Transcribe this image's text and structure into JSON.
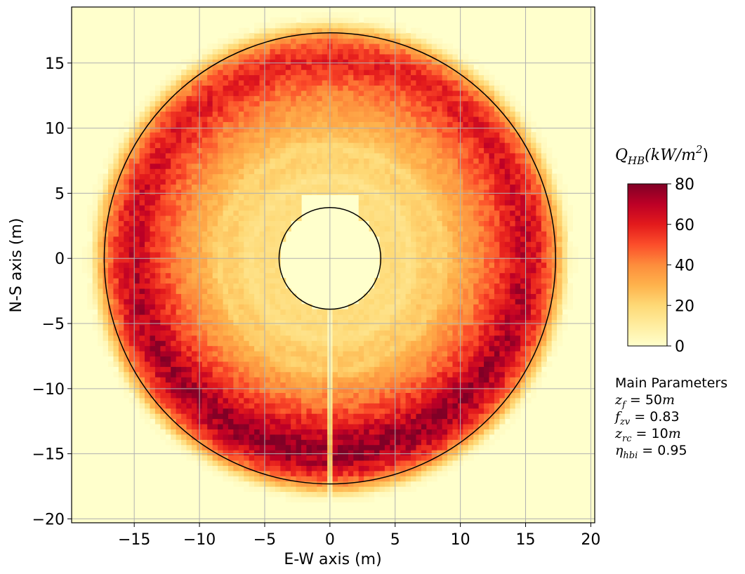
{
  "chart_data": {
    "type": "heatmap",
    "title": "",
    "xlabel": "E-W axis (m)",
    "ylabel": "N-S axis (m)",
    "xlim": [
      -19.8,
      20.3
    ],
    "ylim": [
      -20.3,
      19.3
    ],
    "xticks": [
      -15,
      -10,
      -5,
      0,
      5,
      10,
      15,
      20
    ],
    "yticks": [
      -20,
      -15,
      -10,
      -5,
      0,
      5,
      10,
      15
    ],
    "xtick_labels": [
      "−15",
      "−10",
      "−5",
      "0",
      "5",
      "10",
      "15",
      "20"
    ],
    "ytick_labels": [
      "−20",
      "−15",
      "−10",
      "−5",
      "0",
      "5",
      "10",
      "15"
    ],
    "grid": true,
    "colormap": "YlOrRd",
    "colormap_stops": [
      "#ffffcc",
      "#ffeda0",
      "#fed976",
      "#feb24c",
      "#fd8d3c",
      "#fc4e2a",
      "#e31a1c",
      "#bd0026",
      "#800026"
    ],
    "colorbar": {
      "title_main": "Q",
      "title_sub": "HB",
      "title_rest": "(kW/m",
      "title_sup": "2",
      "title_close": ")",
      "range": [
        0,
        80
      ],
      "ticks": [
        0,
        20,
        40,
        60,
        80
      ],
      "tick_labels": [
        "0",
        "20",
        "40",
        "60",
        "80"
      ]
    },
    "outer_circle_radius": 17.3,
    "inner_circle_radius": 3.9,
    "field_description": {
      "receiver_cutout_radius": 3.9,
      "peak_flux_radius": 15,
      "peak_value_south": 78,
      "peak_value_north": 58,
      "inner_ring_value": 18,
      "outer_falloff_radius": 18.5,
      "south_gap_halfwidth": 0.35
    },
    "parameters": {
      "heading": "Main Parameters",
      "lines": [
        {
          "sym": "z",
          "sub": "f",
          "value": " = 50",
          "unit": "m"
        },
        {
          "sym": "f",
          "sub": "zv",
          "value": " = 0.83",
          "unit": ""
        },
        {
          "sym": "z",
          "sub": "rc",
          "value": " = 10",
          "unit": "m"
        },
        {
          "sym": "η",
          "sub": "hbi",
          "value": " = 0.95",
          "unit": ""
        }
      ]
    }
  }
}
